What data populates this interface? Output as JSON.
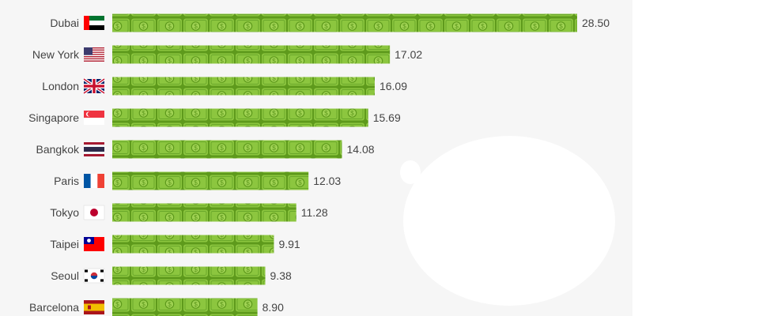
{
  "chart_data": {
    "type": "bar",
    "orientation": "horizontal",
    "categories": [
      "Dubai",
      "New York",
      "London",
      "Singapore",
      "Bangkok",
      "Paris",
      "Tokyo",
      "Taipei",
      "Seoul",
      "Barcelona"
    ],
    "flags": [
      "uae-flag-icon",
      "usa-flag-icon",
      "uk-flag-icon",
      "singapore-flag-icon",
      "thailand-flag-icon",
      "france-flag-icon",
      "japan-flag-icon",
      "taiwan-flag-icon",
      "south-korea-flag-icon",
      "spain-flag-icon"
    ],
    "values": [
      28.5,
      17.02,
      16.09,
      15.69,
      14.08,
      12.03,
      11.28,
      9.91,
      9.38,
      8.9
    ],
    "value_labels": [
      "28.50",
      "17.02",
      "16.09",
      "15.69",
      "14.08",
      "12.03",
      "11.28",
      "9.91",
      "9.38",
      "8.90"
    ],
    "xlim": [
      0,
      28.5
    ],
    "bar_style": "dollar-bill pattern",
    "colors": {
      "bar": "#8cc63f",
      "bar_dark": "#5e9a1c",
      "label": "#444444"
    },
    "grid": false,
    "legend": "none"
  }
}
